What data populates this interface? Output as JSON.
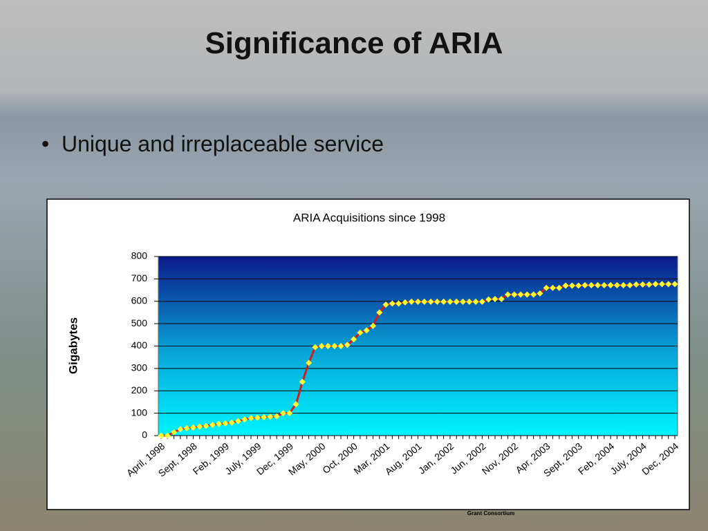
{
  "slide": {
    "title": "Significance of ARIA",
    "bullets": [
      "Unique and irreplaceable service"
    ],
    "footer": "Grant Consortium"
  },
  "chart_data": {
    "type": "line",
    "title": "ARIA Acquisitions since 1998",
    "y_label": "Gigabytes",
    "categories": [
      "April, 1998",
      null,
      null,
      null,
      null,
      "Sept, 1998",
      null,
      null,
      null,
      null,
      "Feb, 1999",
      null,
      null,
      null,
      null,
      "July, 1999",
      null,
      null,
      null,
      null,
      "Dec, 1999",
      null,
      null,
      null,
      null,
      "May, 2000",
      null,
      null,
      null,
      null,
      "Oct, 2000",
      null,
      null,
      null,
      null,
      "Mar, 2001",
      null,
      null,
      null,
      null,
      "Aug, 2001",
      null,
      null,
      null,
      null,
      "Jan, 2002",
      null,
      null,
      null,
      null,
      "Jun, 2002",
      null,
      null,
      null,
      null,
      "Nov, 2002",
      null,
      null,
      null,
      null,
      "Apr, 2003",
      null,
      null,
      null,
      null,
      "Sept, 2003",
      null,
      null,
      null,
      null,
      "Feb, 2004",
      null,
      null,
      null,
      null,
      "July, 2004",
      null,
      null,
      null,
      null,
      "Dec, 2004"
    ],
    "values": [
      0,
      0,
      15,
      28,
      33,
      36,
      40,
      43,
      48,
      52,
      55,
      58,
      65,
      72,
      78,
      80,
      82,
      84,
      86,
      100,
      100,
      140,
      240,
      325,
      395,
      400,
      400,
      400,
      400,
      405,
      430,
      460,
      470,
      490,
      550,
      585,
      590,
      590,
      595,
      598,
      598,
      598,
      598,
      598,
      598,
      598,
      598,
      598,
      598,
      598,
      598,
      608,
      610,
      610,
      630,
      630,
      630,
      630,
      630,
      635,
      660,
      660,
      660,
      670,
      670,
      670,
      672,
      672,
      672,
      672,
      672,
      672,
      672,
      672,
      675,
      675,
      675,
      677,
      677,
      677,
      677
    ],
    "color": "#cc1f1f",
    "marker_color": "#ffff33",
    "ylim": [
      0,
      800
    ],
    "yticks": [
      0,
      100,
      200,
      300,
      400,
      500,
      600,
      700,
      800
    ],
    "grid": true
  }
}
